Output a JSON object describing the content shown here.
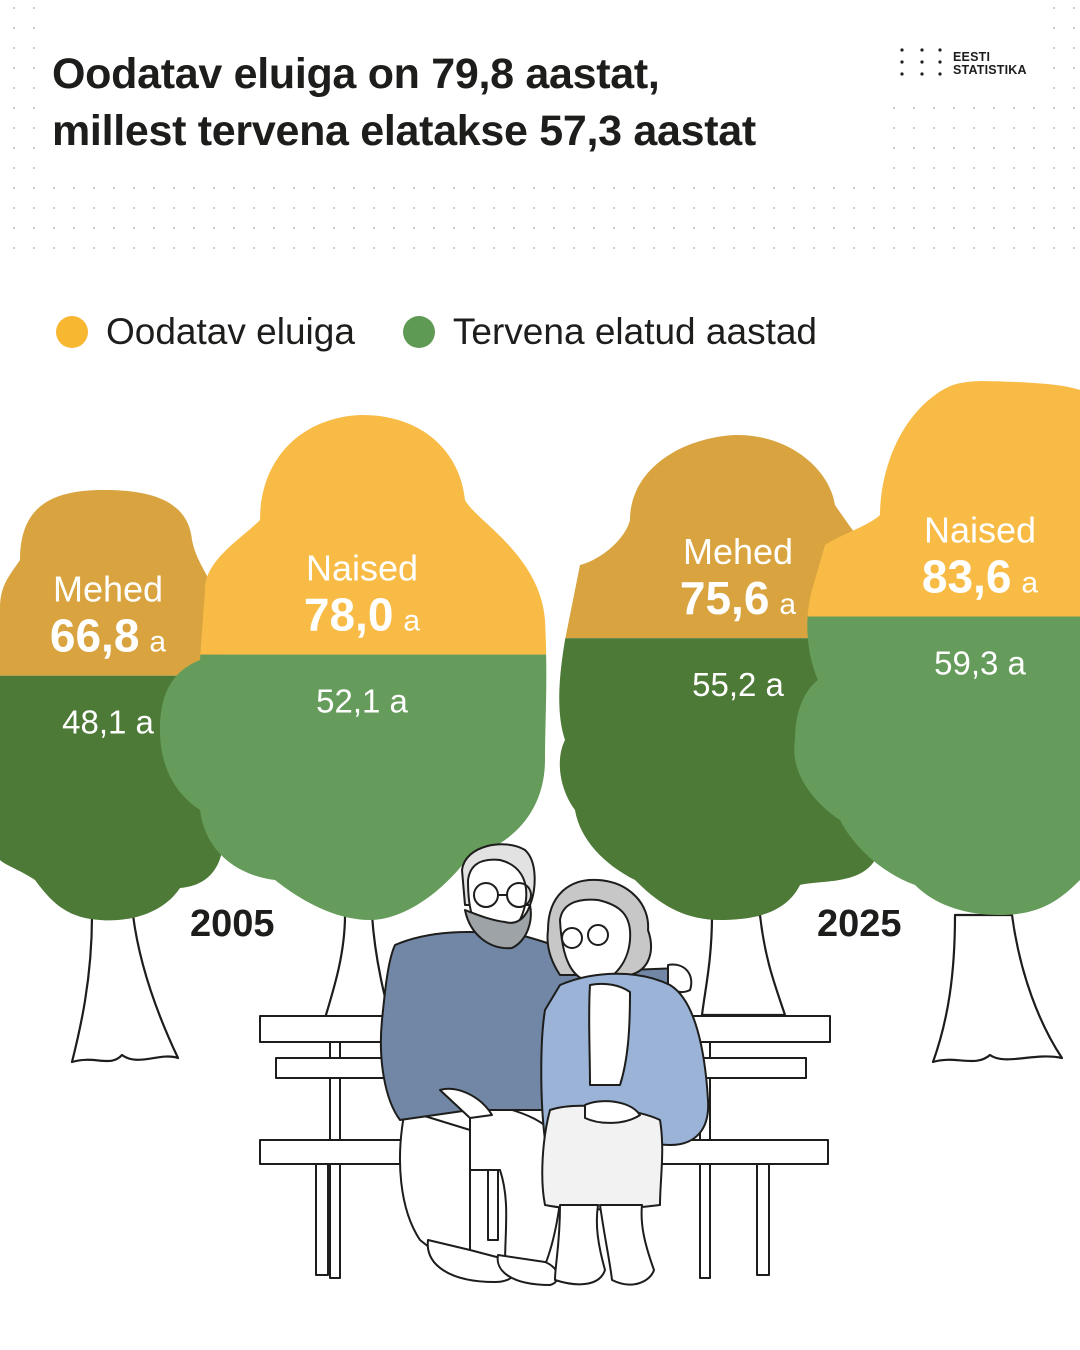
{
  "title": {
    "line1": "Oodatav eluiga on 79,8 aastat,",
    "line2": "millest tervena elatakse 57,3 aastat"
  },
  "logo": {
    "line1": "EESTI",
    "line2": "STATISTIKA"
  },
  "legend": [
    {
      "label": "Oodatav eluiga",
      "color": "#f7b731"
    },
    {
      "label": "Tervena elatud aastad",
      "color": "#5f9a55"
    }
  ],
  "colors": {
    "men_top": "#d9a43f",
    "men_green": "#4e7a38",
    "women_top": "#f8bb45",
    "women_green": "#669c5b"
  },
  "chart_data": {
    "type": "bar",
    "unit": "a",
    "groups": [
      {
        "year": "2005",
        "bars": [
          {
            "group": "Mehed",
            "life_expectancy": 66.8,
            "life_expectancy_label": "66,8",
            "healthy_years": 48.1,
            "healthy_label": "48,1 a"
          },
          {
            "group": "Naised",
            "life_expectancy": 78.0,
            "life_expectancy_label": "78,0",
            "healthy_years": 52.1,
            "healthy_label": "52,1 a"
          }
        ]
      },
      {
        "year": "2025",
        "bars": [
          {
            "group": "Mehed",
            "life_expectancy": 75.6,
            "life_expectancy_label": "75,6",
            "healthy_years": 55.2,
            "healthy_label": "55,2 a"
          },
          {
            "group": "Naised",
            "life_expectancy": 83.6,
            "life_expectancy_label": "83,6",
            "healthy_years": 59.3,
            "healthy_label": "59,3 a"
          }
        ]
      }
    ]
  }
}
